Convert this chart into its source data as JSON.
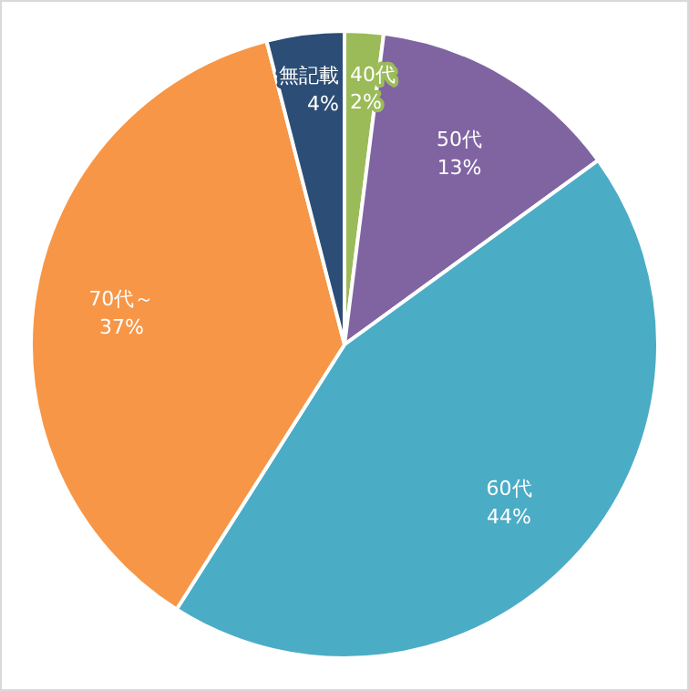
{
  "chart_data": {
    "type": "pie",
    "categories": [
      "40代",
      "50代",
      "60代",
      "70代～",
      "無記載"
    ],
    "values": [
      2,
      13,
      44,
      37,
      4
    ],
    "colors": [
      "#9bbb59",
      "#8064a2",
      "#4bacc6",
      "#f79646",
      "#2c4d75"
    ],
    "value_labels": [
      "2%",
      "13%",
      "44%",
      "37%",
      "4%"
    ]
  }
}
